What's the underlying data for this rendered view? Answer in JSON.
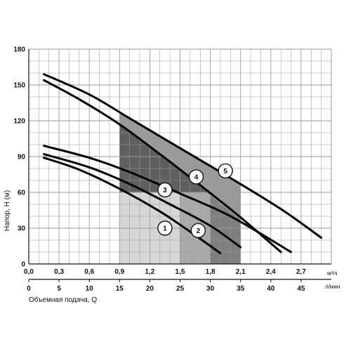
{
  "chart_data": {
    "type": "line",
    "ylabel": "Напор, Н (м)",
    "xlabel": "Объемная подача, Q",
    "x_unit_top": "м³/ч",
    "x_unit_bottom": "л/мин",
    "xlim": [
      0,
      3.0
    ],
    "ylim": [
      0,
      180
    ],
    "y_ticks": [
      "0",
      "30",
      "60",
      "90",
      "120",
      "150",
      "180"
    ],
    "x_ticks_m3h": [
      "0,0",
      "0,3",
      "0,6",
      "0,9",
      "1,2",
      "1,5",
      "1,8",
      "2,1",
      "2,4",
      "2,7"
    ],
    "x_ticks_lmin": [
      "0",
      "5",
      "10",
      "15",
      "20",
      "25",
      "30",
      "35",
      "40",
      "45"
    ],
    "grid": true,
    "series": [
      {
        "label": "1",
        "points": [
          [
            0.15,
            89
          ],
          [
            0.5,
            79
          ],
          [
            0.9,
            63
          ],
          [
            1.3,
            44
          ],
          [
            1.6,
            27
          ],
          [
            1.9,
            9
          ]
        ],
        "marker": [
          1.35,
          30
        ]
      },
      {
        "label": "2",
        "points": [
          [
            0.15,
            92
          ],
          [
            0.6,
            81
          ],
          [
            1.0,
            67
          ],
          [
            1.4,
            50
          ],
          [
            1.8,
            32
          ],
          [
            2.1,
            14
          ]
        ],
        "marker": [
          1.68,
          28
        ]
      },
      {
        "label": "3",
        "points": [
          [
            0.15,
            99
          ],
          [
            0.6,
            89
          ],
          [
            1.0,
            77
          ],
          [
            1.5,
            59
          ],
          [
            2.0,
            40
          ],
          [
            2.6,
            10
          ]
        ],
        "marker": [
          1.35,
          62
        ]
      },
      {
        "label": "4",
        "points": [
          [
            0.15,
            154
          ],
          [
            0.5,
            138
          ],
          [
            0.9,
            117
          ],
          [
            1.3,
            92
          ],
          [
            1.7,
            66
          ],
          [
            2.1,
            39
          ],
          [
            2.5,
            10
          ]
        ],
        "marker": [
          1.66,
          73
        ]
      },
      {
        "label": "5",
        "points": [
          [
            0.15,
            159
          ],
          [
            0.6,
            142
          ],
          [
            1.0,
            122
          ],
          [
            1.5,
            97
          ],
          [
            2.0,
            72
          ],
          [
            2.5,
            46
          ],
          [
            2.9,
            22
          ]
        ],
        "marker": [
          1.95,
          78
        ]
      }
    ],
    "zones": [
      {
        "x": [
          0.9,
          1.5
        ],
        "color": "#d6d6d6"
      },
      {
        "x": [
          1.5,
          1.8
        ],
        "color": "#a9a9a9"
      },
      {
        "x": [
          1.8,
          2.1
        ],
        "color": "#7f7f7f"
      }
    ],
    "colors": {
      "curve": "#000000",
      "grid": "#9a9a9a",
      "dark_band": "#5f5f5f",
      "mid_band": "#8f8f8f"
    }
  }
}
